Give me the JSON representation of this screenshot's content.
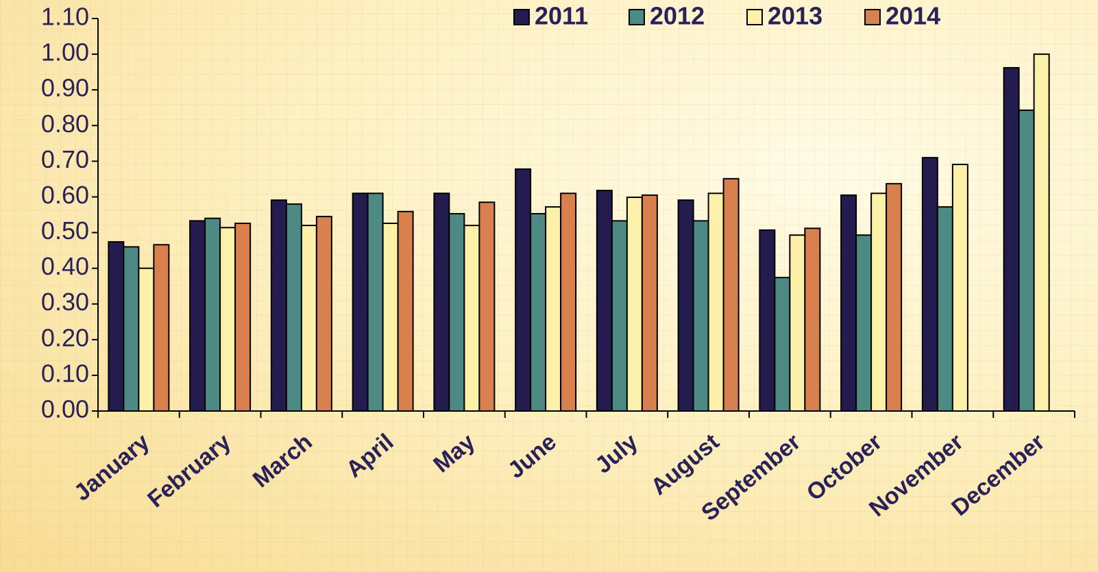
{
  "chart_data": {
    "type": "bar",
    "categories": [
      "January",
      "February",
      "March",
      "April",
      "May",
      "June",
      "July",
      "August",
      "September",
      "October",
      "November",
      "December"
    ],
    "series": [
      {
        "name": "2011",
        "color": "#241c4f",
        "values": [
          0.474,
          0.533,
          0.591,
          0.61,
          0.61,
          0.678,
          0.618,
          0.591,
          0.507,
          0.605,
          0.71,
          0.962
        ]
      },
      {
        "name": "2012",
        "color": "#4e8a84",
        "values": [
          0.46,
          0.54,
          0.58,
          0.61,
          0.553,
          0.553,
          0.533,
          0.533,
          0.374,
          0.493,
          0.572,
          0.843
        ]
      },
      {
        "name": "2013",
        "color": "#fdf0a8",
        "values": [
          0.4,
          0.514,
          0.52,
          0.526,
          0.52,
          0.572,
          0.599,
          0.61,
          0.493,
          0.61,
          0.691,
          1.0
        ]
      },
      {
        "name": "2014",
        "color": "#d8804e",
        "values": [
          0.466,
          0.526,
          0.545,
          0.559,
          0.585,
          0.61,
          0.605,
          0.651,
          0.512,
          0.637,
          null,
          null
        ]
      }
    ],
    "ylim": [
      0,
      1.1
    ],
    "yticks": [
      {
        "value": 0,
        "label": "0.00"
      },
      {
        "value": 0.1,
        "label": "0.10"
      },
      {
        "value": 0.2,
        "label": "0.20"
      },
      {
        "value": 0.3,
        "label": "0.30"
      },
      {
        "value": 0.4,
        "label": "0.40"
      },
      {
        "value": 0.5,
        "label": "0.50"
      },
      {
        "value": 0.6,
        "label": "0.60"
      },
      {
        "value": 0.7,
        "label": "0.70"
      },
      {
        "value": 0.8,
        "label": "0.80"
      },
      {
        "value": 0.9,
        "label": "0.90"
      },
      {
        "value": 1.0,
        "label": "1.00"
      },
      {
        "value": 1.1,
        "label": "1.10"
      }
    ],
    "legend": "top"
  }
}
